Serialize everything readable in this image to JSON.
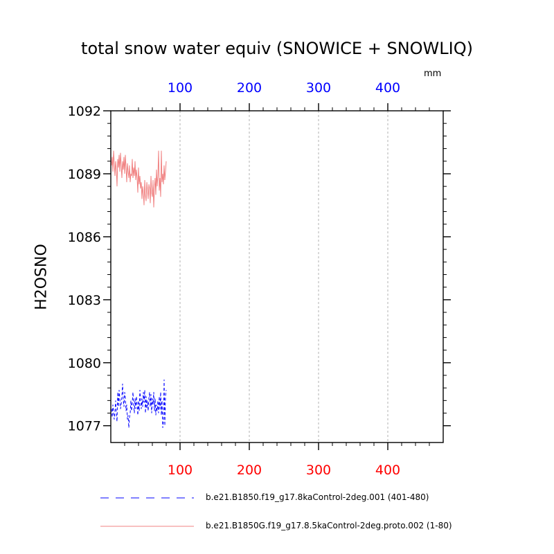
{
  "chart_data": {
    "type": "line",
    "title": "total snow water equiv (SNOWICE + SNOWLIQ)",
    "units": "mm",
    "ylabel": "H2OSNO",
    "xlabel": "",
    "xlim": [
      0,
      480
    ],
    "ylim": [
      1076.2,
      1092
    ],
    "x_ticks": [
      100,
      200,
      300,
      400
    ],
    "y_ticks": [
      1077,
      1080,
      1083,
      1086,
      1089,
      1092
    ],
    "top_axis_color": "#0000ff",
    "bottom_axis_color": "#ff0000",
    "grid": "vertical dashed",
    "legend_placement": "bottom",
    "series": [
      {
        "name": "b.e21.B1850.f19_g17.8kaControl-2deg.001 (401-480)",
        "color": "#0000ff",
        "dash": "dashed",
        "x": [
          1,
          2,
          3,
          4,
          5,
          6,
          7,
          8,
          9,
          10,
          11,
          12,
          13,
          14,
          15,
          16,
          17,
          18,
          19,
          20,
          21,
          22,
          23,
          24,
          25,
          26,
          27,
          28,
          29,
          30,
          31,
          32,
          33,
          34,
          35,
          36,
          37,
          38,
          39,
          40,
          41,
          42,
          43,
          44,
          45,
          46,
          47,
          48,
          49,
          50,
          51,
          52,
          53,
          54,
          55,
          56,
          57,
          58,
          59,
          60,
          61,
          62,
          63,
          64,
          65,
          66,
          67,
          68,
          69,
          70,
          71,
          72,
          73,
          74,
          75,
          76,
          77,
          78,
          79,
          80
        ],
        "values": [
          1077.8,
          1077.4,
          1078.0,
          1077.6,
          1077.3,
          1077.7,
          1078.2,
          1077.5,
          1077.2,
          1078.6,
          1077.9,
          1078.7,
          1078.3,
          1077.8,
          1078.0,
          1078.4,
          1079.0,
          1078.2,
          1077.9,
          1078.6,
          1078.3,
          1077.7,
          1078.0,
          1077.3,
          1077.5,
          1076.9,
          1077.4,
          1077.6,
          1078.2,
          1077.7,
          1078.1,
          1078.6,
          1078.0,
          1077.6,
          1078.3,
          1077.8,
          1078.4,
          1078.0,
          1077.5,
          1078.2,
          1077.7,
          1078.7,
          1078.2,
          1077.8,
          1078.3,
          1077.9,
          1078.6,
          1078.1,
          1078.7,
          1077.6,
          1078.4,
          1077.8,
          1078.2,
          1077.7,
          1078.3,
          1078.6,
          1077.9,
          1078.5,
          1077.6,
          1078.3,
          1078.0,
          1078.6,
          1077.7,
          1078.3,
          1077.5,
          1078.0,
          1077.7,
          1078.2,
          1077.6,
          1078.4,
          1077.8,
          1078.6,
          1077.5,
          1078.2,
          1076.9,
          1077.2,
          1079.2,
          1077.0,
          1078.4,
          1078.7
        ]
      },
      {
        "name": "b.e21.B1850G.f19_g17.8.5kaControl-2deg.proto.002 (1-80)",
        "color": "#f08080",
        "dash": "solid",
        "x": [
          1,
          2,
          3,
          4,
          5,
          6,
          7,
          8,
          9,
          10,
          11,
          12,
          13,
          14,
          15,
          16,
          17,
          18,
          19,
          20,
          21,
          22,
          23,
          24,
          25,
          26,
          27,
          28,
          29,
          30,
          31,
          32,
          33,
          34,
          35,
          36,
          37,
          38,
          39,
          40,
          41,
          42,
          43,
          44,
          45,
          46,
          47,
          48,
          49,
          50,
          51,
          52,
          53,
          54,
          55,
          56,
          57,
          58,
          59,
          60,
          61,
          62,
          63,
          64,
          65,
          66,
          67,
          68,
          69,
          70,
          71,
          72,
          73,
          74,
          75,
          76,
          77,
          78,
          79,
          80
        ],
        "values": [
          1089.4,
          1089.8,
          1089.1,
          1090.1,
          1089.5,
          1088.9,
          1089.6,
          1089.2,
          1088.4,
          1089.7,
          1089.3,
          1089.9,
          1089.1,
          1090.0,
          1089.4,
          1088.8,
          1089.6,
          1089.2,
          1089.8,
          1089.0,
          1089.9,
          1089.3,
          1088.6,
          1089.5,
          1089.1,
          1088.8,
          1089.4,
          1088.6,
          1089.0,
          1088.9,
          1089.7,
          1088.8,
          1089.3,
          1088.9,
          1089.6,
          1088.7,
          1089.2,
          1088.8,
          1088.1,
          1089.3,
          1088.5,
          1088.9,
          1088.3,
          1088.6,
          1087.8,
          1088.4,
          1088.1,
          1087.5,
          1088.7,
          1088.0,
          1087.7,
          1088.6,
          1088.2,
          1087.8,
          1088.5,
          1088.3,
          1087.6,
          1088.9,
          1088.1,
          1087.9,
          1088.7,
          1087.4,
          1088.3,
          1088.8,
          1088.0,
          1089.2,
          1088.4,
          1088.9,
          1090.1,
          1088.2,
          1088.8,
          1087.9,
          1090.1,
          1088.6,
          1089.0,
          1088.5,
          1089.4,
          1088.7,
          1089.1,
          1089.6
        ]
      }
    ]
  }
}
